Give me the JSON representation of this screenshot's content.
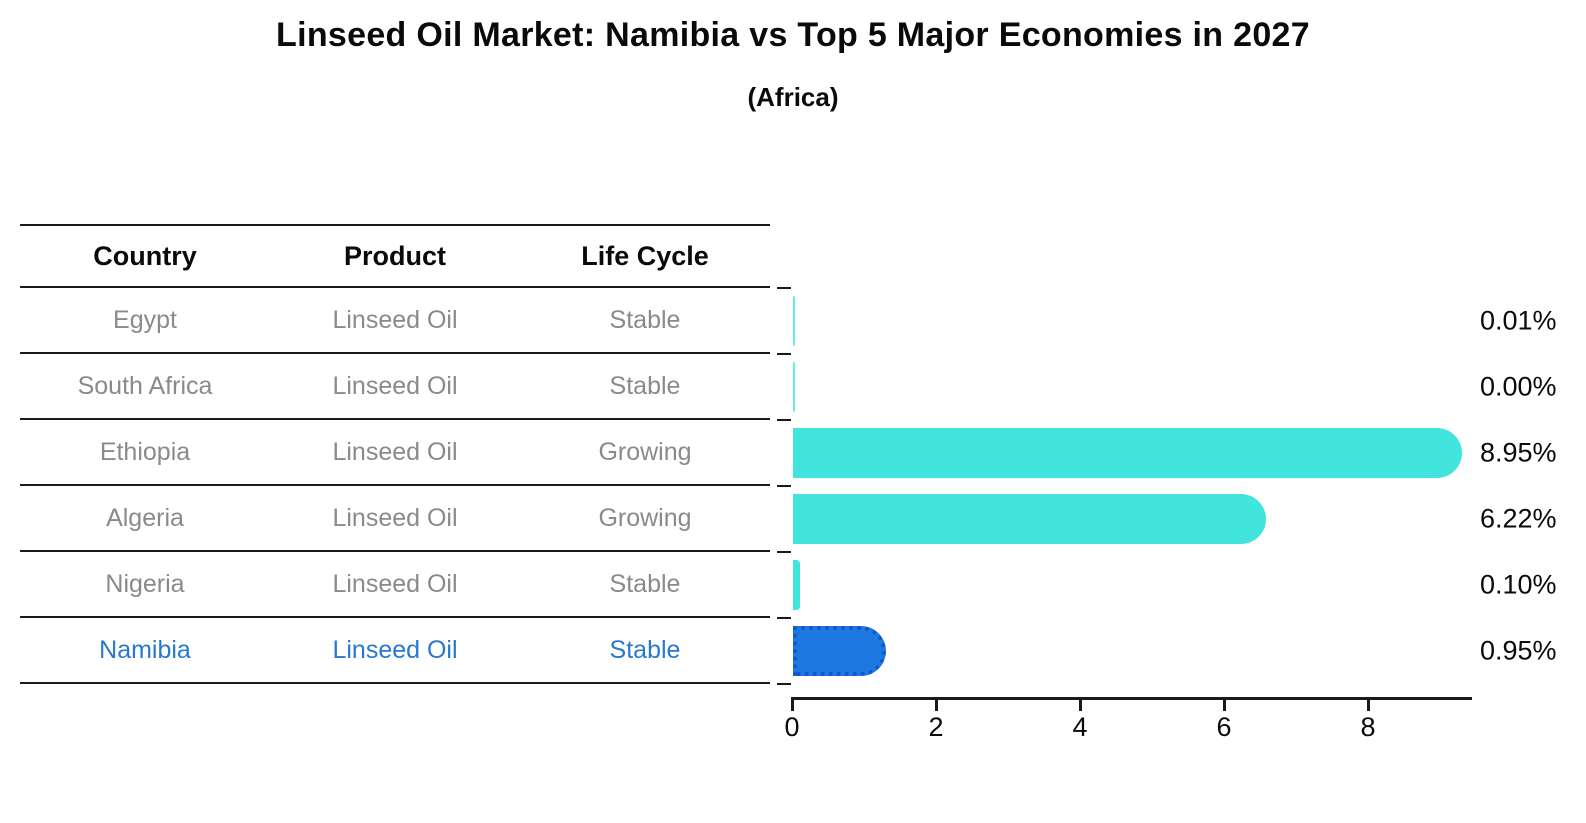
{
  "title": "Linseed Oil Market: Namibia vs Top 5 Major Economies in 2027",
  "subtitle": "(Africa)",
  "table": {
    "headers": [
      "Country",
      "Product",
      "Life Cycle"
    ],
    "rows": [
      {
        "country": "Egypt",
        "product": "Linseed Oil",
        "life_cycle": "Stable",
        "highlight": false
      },
      {
        "country": "South Africa",
        "product": "Linseed Oil",
        "life_cycle": "Stable",
        "highlight": false
      },
      {
        "country": "Ethiopia",
        "product": "Linseed Oil",
        "life_cycle": "Growing",
        "highlight": false
      },
      {
        "country": "Algeria",
        "product": "Linseed Oil",
        "life_cycle": "Growing",
        "highlight": false
      },
      {
        "country": "Nigeria",
        "product": "Linseed Oil",
        "life_cycle": "Stable",
        "highlight": false
      },
      {
        "country": "Namibia",
        "product": "Linseed Oil",
        "life_cycle": "Stable",
        "highlight": true
      }
    ]
  },
  "chart_data": {
    "type": "bar",
    "orientation": "horizontal",
    "categories": [
      "Egypt",
      "South Africa",
      "Ethiopia",
      "Algeria",
      "Nigeria",
      "Namibia"
    ],
    "values": [
      0.01,
      0.0,
      8.95,
      6.22,
      0.1,
      0.95
    ],
    "value_labels": [
      "0.01%",
      "0.00%",
      "8.95%",
      "6.22%",
      "0.10%",
      "0.95%"
    ],
    "x_ticks": [
      "0",
      "2",
      "4",
      "6",
      "8"
    ],
    "x_tick_values": [
      0,
      2,
      4,
      6,
      8
    ],
    "xlim": [
      0,
      9.45
    ],
    "highlight_index": 5,
    "grid": false,
    "legend": false
  },
  "colors": {
    "bar_default": "#42e5dc",
    "bar_highlight": "#1e78e1",
    "bar_highlight_border": "#1456cb",
    "row_text": "#8a8a8a",
    "highlight_text": "#2878cd",
    "axis": "#1a1a1a",
    "title_text": "#0a0a0a"
  }
}
